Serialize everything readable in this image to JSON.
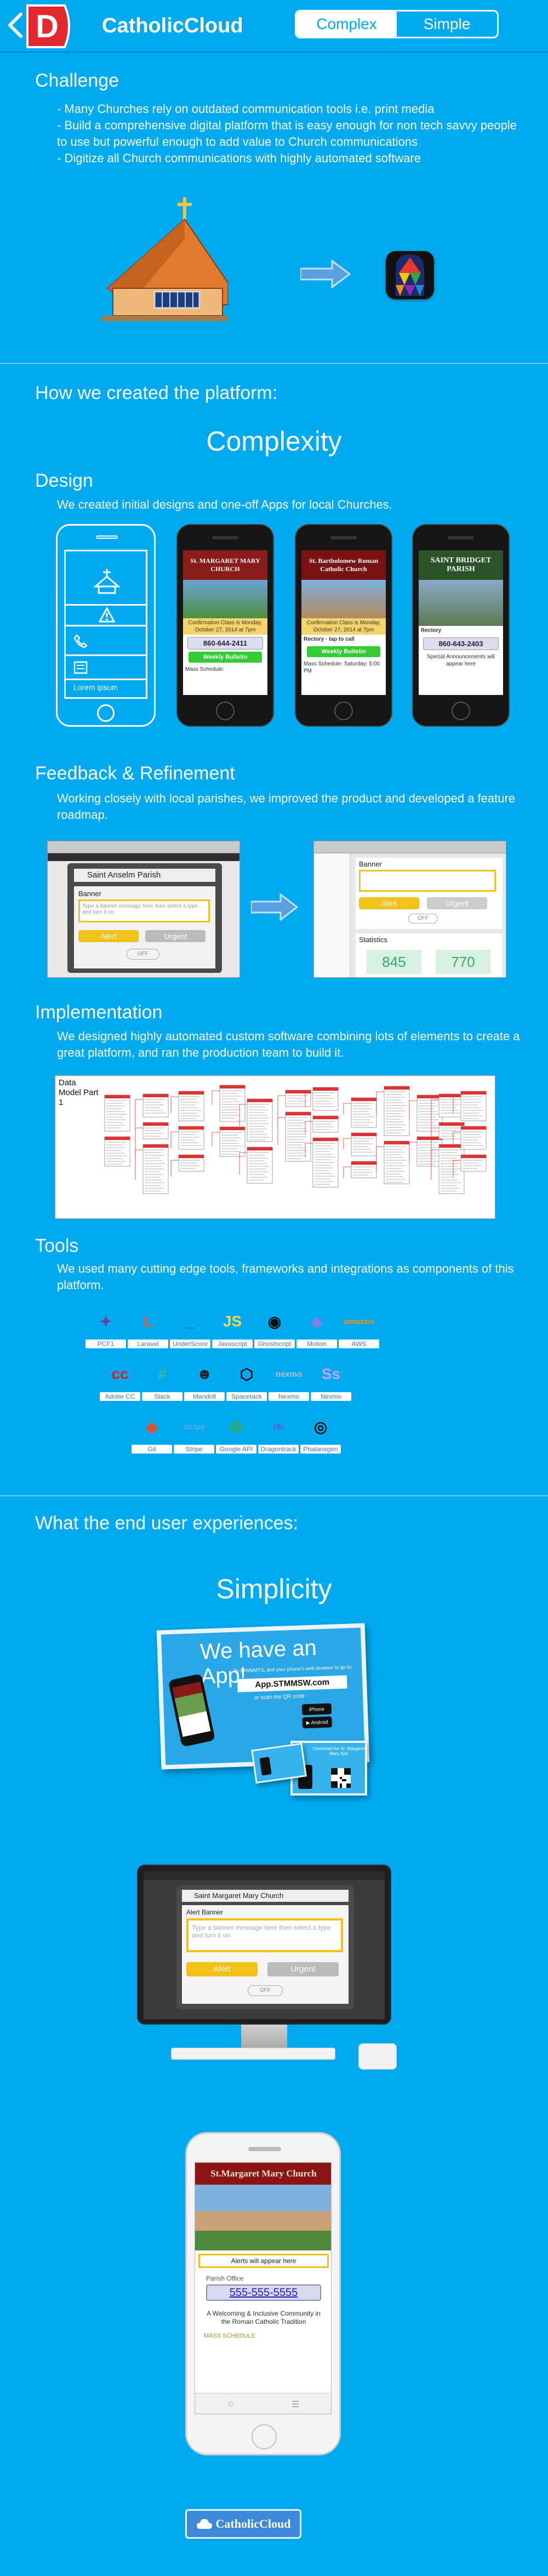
{
  "header": {
    "title": "CatholicCloud",
    "logo_letter": "D",
    "toggle": {
      "selected": "Complex",
      "other": "Simple"
    }
  },
  "challenge": {
    "title": "Challenge",
    "bullets": [
      "- Many Churches rely on outdated communication tools i.e. print media",
      "- Build a comprehensive digital platform that is easy enough for non tech savvy people to use but powerful enough to add value to Church communications",
      "- Digitize all Church communications with highly automated software"
    ]
  },
  "platform": {
    "title": "How we created the platform:",
    "big": "Complexity"
  },
  "design": {
    "title": "Design",
    "text": "We created initial designs and one-off Apps for local Churches.",
    "wireframe_caption": "Lorem ipsum",
    "phones": [
      {
        "banner": "St. MARGARET MARY CHURCH",
        "banner_color": "#8b1a1a",
        "phone": "860-644-2411",
        "button": "Weekly Bulletin",
        "footer": "Mass Schedule:"
      },
      {
        "banner": "St. Bartholomew Roman Catholic Church",
        "banner_color": "#7a1212",
        "phone": "Rectory · tap to call",
        "button": "Weekly Bulletin",
        "footer": "Mass Schedule: Saturday: 5:00 PM"
      },
      {
        "banner": "SAINT BRIDGET PARISH",
        "banner_color": "#2b5229",
        "phone": "860-643-2403",
        "button": "",
        "footer": "Special Announcements will appear here"
      }
    ]
  },
  "feedback": {
    "title": "Feedback & Refinement",
    "text": "Working closely with local parishes, we improved the product and developed a feature roadmap.",
    "shot1": {
      "parish": "Saint Anselm Parish",
      "banner_label": "Banner",
      "placeholder": "Type a banner message here then select a type and turn it on",
      "alert": "Alert",
      "urgent": "Urgent",
      "off": "OFF"
    },
    "shot2": {
      "banner_label": "Banner",
      "alert": "Alert",
      "urgent": "Urgent",
      "off": "OFF",
      "statistics": "Statistics",
      "stat_a": "845",
      "stat_b": "770"
    }
  },
  "implementation": {
    "title": "Implementation",
    "text": "We designed highly automated custom software combining lots of elements to create a great platform, and ran the production team to build it.",
    "diagram_title": "Data Model Part 1"
  },
  "tools": {
    "title": "Tools",
    "text": "We used many cutting edge tools, frameworks and integrations as components of this platform.",
    "rows": [
      [
        {
          "label": "PCF1",
          "glyph": "✦",
          "color": "#6b3fa0"
        },
        {
          "label": "Laravel",
          "glyph": "L",
          "color": "#f05340"
        },
        {
          "label": "UnderScore",
          "glyph": "_",
          "color": "#1d4f91"
        },
        {
          "label": "Javascript",
          "glyph": "JS",
          "color": "#f0db4f"
        },
        {
          "label": "Ghostscript",
          "glyph": "◉",
          "color": "#101010"
        },
        {
          "label": "Motion",
          "glyph": "◈",
          "color": "#8a7ce0"
        },
        {
          "label": "AWS",
          "glyph": "amazon",
          "color": "#f29111"
        }
      ],
      [
        {
          "label": "Adobe CC",
          "glyph": "cc",
          "color": "#da1f26"
        },
        {
          "label": "Slack",
          "glyph": "#",
          "color": "#3eb991"
        },
        {
          "label": "Mandrill",
          "glyph": "☻",
          "color": "#222"
        },
        {
          "label": "Spacetack",
          "glyph": "⬡",
          "color": "#0a0a0a"
        },
        {
          "label": "Nexmo",
          "glyph": "nexmo",
          "color": "#bdbdbd"
        },
        {
          "label": "Nexmo",
          "glyph": "Ss",
          "color": "#c9a0ff"
        }
      ],
      [
        {
          "label": "Git",
          "glyph": "◆",
          "color": "#e84e31"
        },
        {
          "label": "Stripe",
          "glyph": "stripe",
          "color": "#5aa8e8"
        },
        {
          "label": "Google API",
          "glyph": "✿",
          "color": "#34a853"
        },
        {
          "label": "Dragontrack",
          "glyph": "❧",
          "color": "#3a7bd5"
        },
        {
          "label": "Phalanxgen",
          "glyph": "◎",
          "color": "#111"
        }
      ]
    ]
  },
  "enduser": {
    "title": "What the end user experiences:",
    "big": "Simplicity",
    "flyer_headline": "We have an App!",
    "flyer_sub": "To WWMMTS, text your phone's web browser to go to:",
    "flyer_url": "App.STMMSW.com",
    "flyer_store": "or scan the QR code",
    "card_text": "Download the St. Margaret Mary App",
    "desktop": {
      "parish": "Saint Margaret Mary Church",
      "alert_banner": "Alert Banner",
      "placeholder": "Type a banner message here then select a type and turn it on",
      "alert": "Alert",
      "urgent": "Urgent",
      "off": "OFF"
    },
    "phone": {
      "church": "St.Margaret Mary Church",
      "alert": "Alerts will appear here",
      "office": "Parish Office",
      "number": "555-555-5555",
      "tagline": "A Welcoming & Inclusive Community in the Roman Catholic Tradition",
      "mass": "MASS SCHEDULE"
    },
    "footer_logo": "CatholicCloud"
  },
  "colors": {
    "background": "#00aaf0",
    "accent_red": "#e3292f",
    "divider": "#0a86c4"
  }
}
